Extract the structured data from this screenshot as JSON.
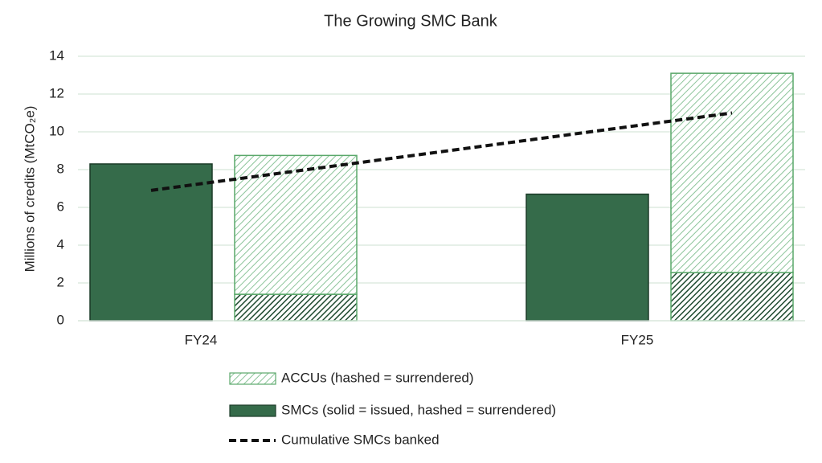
{
  "chart_data": {
    "type": "bar",
    "title": "The Growing SMC Bank",
    "y_label": "Millions of credits (MtCO₂e)",
    "categories": [
      "FY24",
      "FY25"
    ],
    "series": [
      {
        "name": "ACCUs (hashed = surrendered)",
        "color": "#5aa86a",
        "values": [
          7.35,
          10.55
        ]
      },
      {
        "name": "SMCs (solid = issued, hashed = surrendered)",
        "color": "#356b4a",
        "values": [
          8.3,
          6.7
        ],
        "surrendered": [
          1.4,
          2.55
        ]
      },
      {
        "name": "Cumulative SMCs banked",
        "color": "#111111",
        "type": "line",
        "values": [
          6.9,
          11.0
        ]
      }
    ],
    "ylim": [
      0,
      14
    ],
    "yticks": [
      0,
      2,
      4,
      6,
      8,
      10,
      12,
      14
    ],
    "grid": true
  }
}
